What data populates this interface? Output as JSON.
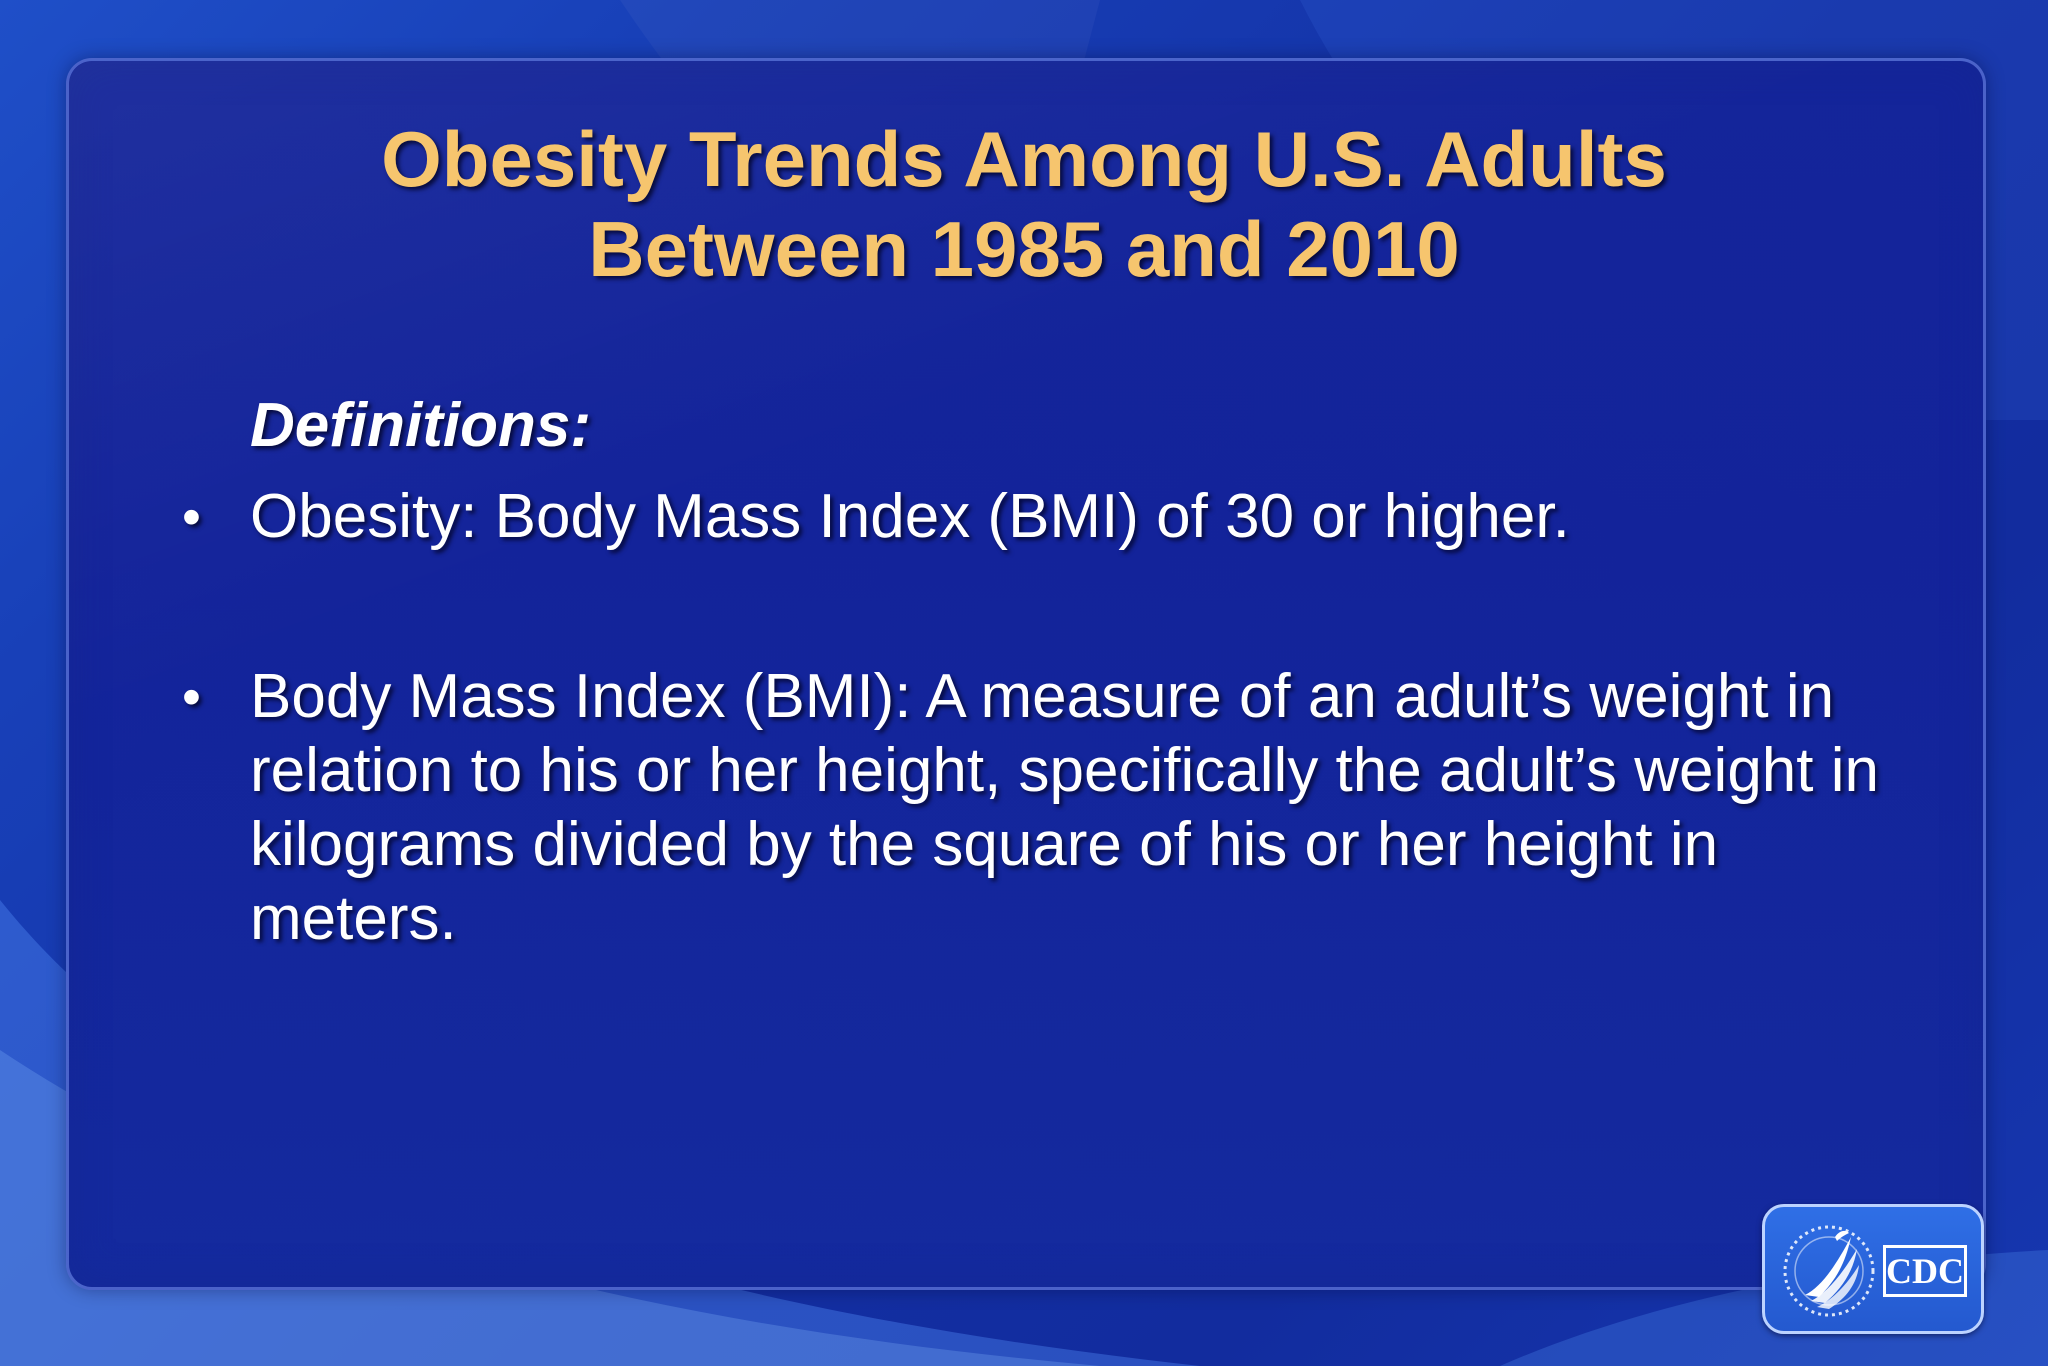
{
  "slide": {
    "title_lines": [
      "Obesity Trends Among U.S. Adults",
      "Between 1985 and 2010"
    ],
    "section_label": "Definitions:",
    "bullets": [
      "Obesity: Body Mass Index (BMI) of 30 or higher.",
      "Body Mass Index (BMI): A measure of an adult’s weight in relation to his or her height, specifically the adult’s weight in kilograms divided by the square of his or her height in meters."
    ],
    "bullet_marker": "•"
  },
  "logo": {
    "wordmark": "CDC",
    "icon": "hhs-eagle-seal-icon"
  },
  "colors": {
    "background": "#1637b0",
    "title": "#f6c56e",
    "body_text": "#ffffff",
    "panel": "#13239a",
    "logo_badge": "#2a62dc"
  }
}
